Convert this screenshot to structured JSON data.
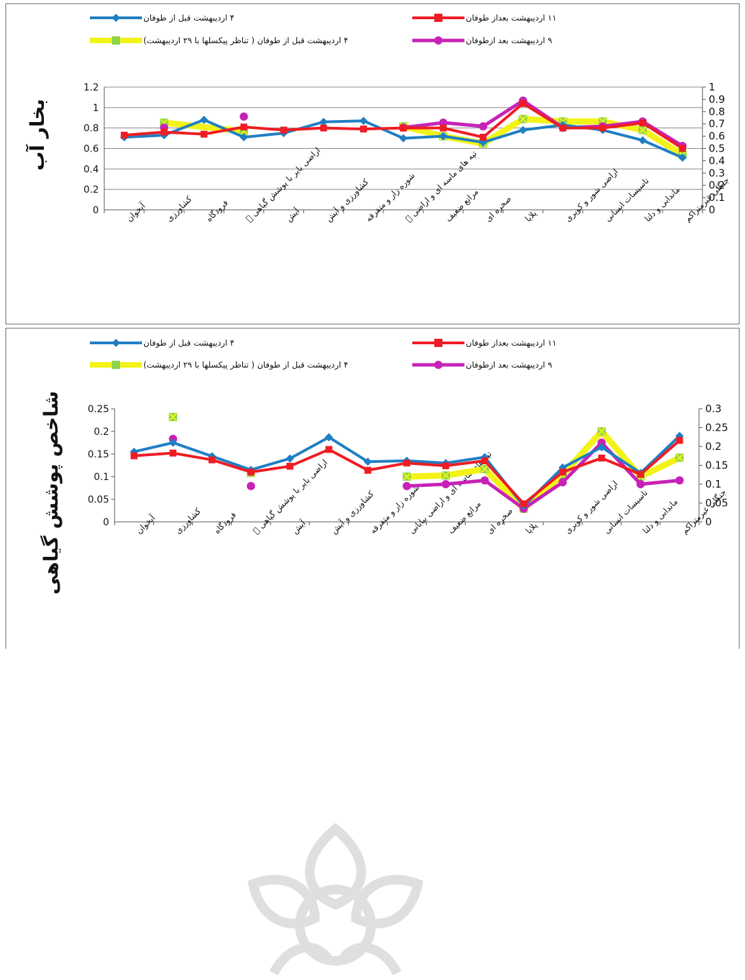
{
  "chart_data": [
    {
      "type": "line",
      "ylabel": "بخار آب",
      "ylim": [
        0,
        1.2
      ],
      "y_ticks": [
        "0",
        "0.2",
        "0.4",
        "0.6",
        "0.8",
        "1",
        "1.2"
      ],
      "y2lim": [
        0,
        1
      ],
      "y2_ticks": [
        "0",
        "0.1",
        "0.2",
        "0.3",
        "0.4",
        "0.5",
        "0.6",
        "0.7",
        "0.8",
        "0.9",
        "1"
      ],
      "categories": [
        "آبخوان",
        "کشاورزی",
        "فرودگاه",
        "اراضی بایر با پوشش گیاهی ⃞",
        "آیش",
        "کشاورزی و آیش",
        "شوره زار و متفرقه",
        "تپه های ماسه ای و اراضی ⃞",
        "مراتع ضعیف",
        "صخره ای",
        "پلایا",
        "اراضی شور و کویری",
        "تاسیسات انسانی",
        "ماندابی و دلتا",
        "جنگلی غیرمتراکم"
      ],
      "legend_placement": "top",
      "grid": true,
      "series": [
        {
          "name": "۴ اردیبهشت قبل از طوفان",
          "color": "#1f7fc4",
          "marker": "diamond",
          "axis": "left",
          "values": [
            0.71,
            0.73,
            0.88,
            0.71,
            0.75,
            0.86,
            0.87,
            0.7,
            0.72,
            0.66,
            0.78,
            0.83,
            0.78,
            0.68,
            0.51
          ]
        },
        {
          "name": "۱۱ اردیبهشت بعداز طوفان",
          "color": "#ee1c24",
          "marker": "square",
          "axis": "left",
          "values": [
            0.73,
            0.76,
            0.74,
            0.81,
            0.78,
            0.8,
            0.79,
            0.8,
            0.8,
            0.71,
            1.04,
            0.8,
            0.8,
            0.85,
            0.6
          ]
        },
        {
          "name": "۴ اردیبهشت قبل از طوفان ( تناظر پیکسلها با ۲۹ اردیبهشت)",
          "color": "#f3f317",
          "marker_color": "#8ed44b",
          "marker": "x",
          "axis": "right",
          "segments": [
            [
              0,
              1
            ],
            [
              1,
              4
            ],
            [
              3,
              5
            ],
            [
              7,
              14
            ]
          ],
          "points": [
            [
              1,
              0.71
            ],
            [
              3,
              0.64
            ],
            [
              7,
              0.68
            ],
            [
              8,
              0.6
            ],
            [
              9,
              0.54
            ],
            [
              10,
              0.74
            ],
            [
              11,
              0.72
            ],
            [
              12,
              0.72
            ],
            [
              13,
              0.65
            ],
            [
              14,
              0.45
            ]
          ]
        },
        {
          "name": "۹ اردیبهشت بعد ازطوفان",
          "color": "#c722b7",
          "marker": "circle",
          "axis": "right",
          "segments": [
            [
              1,
              1
            ],
            [
              3,
              3
            ],
            [
              7,
              14
            ]
          ],
          "points": [
            [
              1,
              0.67
            ],
            [
              3,
              0.76
            ],
            [
              7,
              0.67
            ],
            [
              8,
              0.71
            ],
            [
              9,
              0.68
            ],
            [
              10,
              0.89
            ],
            [
              11,
              0.67
            ],
            [
              12,
              0.68
            ],
            [
              13,
              0.72
            ],
            [
              14,
              0.52
            ]
          ]
        }
      ]
    },
    {
      "type": "line",
      "ylabel": "شاخص پوشش گیاهی",
      "ylim": [
        0,
        0.25
      ],
      "y_ticks": [
        "0",
        "0.05",
        "0.1",
        "0.15",
        "0.2",
        "0.25"
      ],
      "y2lim": [
        0,
        0.3
      ],
      "y2_ticks": [
        "0",
        "0.05",
        "0.1",
        "0.15",
        "0.2",
        "0.25",
        "0.3"
      ],
      "categories": [
        "آبخوان",
        "کشاورزی",
        "فرودگاه",
        "اراضی بایر با پوشش گیاهی ⃞",
        "آیش",
        "کشاورزی و آیش",
        "شوره زار و متفرقه",
        "تپه های ماسه ای و اراضی بیابانی",
        "مراتع ضعیف",
        "صخره ای",
        "پلایا",
        "اراضی شور و کویری",
        "تاسیسات انسانی",
        "ماندابی و دلتا",
        "جنگلی غیرمتراکم"
      ],
      "legend_placement": "top",
      "grid": false,
      "series": [
        {
          "name": "۴ اردیبهشت قبل از طوفان",
          "color": "#1f7fc4",
          "marker": "diamond",
          "axis": "left",
          "values": [
            0.155,
            0.175,
            0.145,
            0.115,
            0.14,
            0.187,
            0.133,
            0.135,
            0.13,
            0.143,
            0.035,
            0.12,
            0.165,
            0.108,
            0.19
          ]
        },
        {
          "name": "۱۱ اردیبهشت بعداز طوفان",
          "color": "#ee1c24",
          "marker": "square",
          "axis": "left",
          "values": [
            0.146,
            0.152,
            0.137,
            0.11,
            0.123,
            0.16,
            0.114,
            0.13,
            0.124,
            0.135,
            0.04,
            0.11,
            0.141,
            0.105,
            0.18
          ]
        },
        {
          "name": "۴ اردیبهشت قبل از طوفان ( تناظر پیکسلها با ۲۹ اردیبهشت)",
          "color": "#f3f317",
          "marker_color": "#8ed44b",
          "marker": "x",
          "axis": "right",
          "segments": [
            [
              1,
              1
            ],
            [
              3,
              3
            ],
            [
              7,
              14
            ]
          ],
          "points": [
            [
              1,
              0.278
            ],
            [
              3,
              0.13
            ],
            [
              7,
              0.12
            ],
            [
              8,
              0.123
            ],
            [
              9,
              0.14
            ],
            [
              10,
              0.035
            ],
            [
              11,
              0.125
            ],
            [
              12,
              0.24
            ],
            [
              13,
              0.12
            ],
            [
              14,
              0.17
            ]
          ]
        },
        {
          "name": "۹ اردیبهشت بعد ازطوفان",
          "color": "#c722b7",
          "marker": "circle",
          "axis": "right",
          "segments": [
            [
              1,
              1
            ],
            [
              3,
              3
            ],
            [
              7,
              14
            ]
          ],
          "points": [
            [
              1,
              0.22
            ],
            [
              3,
              0.095
            ],
            [
              7,
              0.095
            ],
            [
              8,
              0.1
            ],
            [
              9,
              0.11
            ],
            [
              10,
              0.035
            ],
            [
              11,
              0.105
            ],
            [
              12,
              0.21
            ],
            [
              13,
              0.1
            ],
            [
              14,
              0.11
            ]
          ]
        }
      ]
    }
  ]
}
